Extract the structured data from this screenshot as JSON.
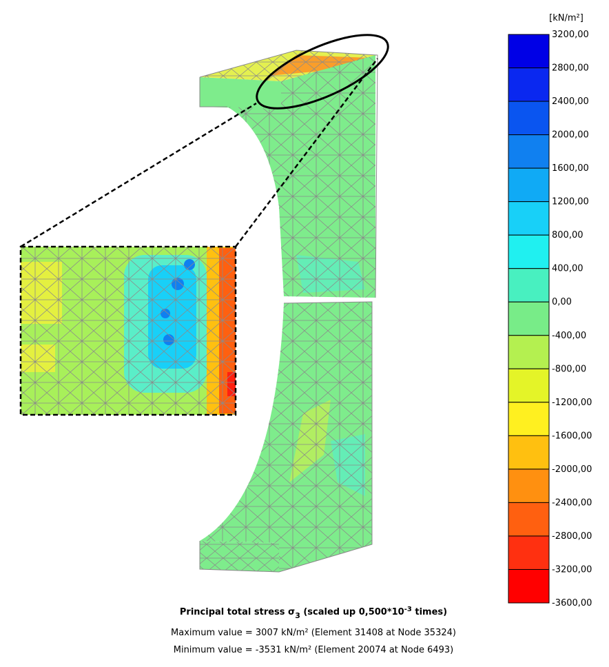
{
  "legend": {
    "unit": "[kN/m²]",
    "labels": [
      "3200,00",
      "2800,00",
      "2400,00",
      "2000,00",
      "1600,00",
      "1200,00",
      "800,00",
      "400,00",
      "0,00",
      "-400,00",
      "-800,00",
      "-1200,00",
      "-1600,00",
      "-2000,00",
      "-2400,00",
      "-2800,00",
      "-3200,00",
      "-3600,00"
    ],
    "colors": [
      "#0000e6",
      "#0a28f0",
      "#0a55f0",
      "#1080f0",
      "#10aaf5",
      "#18d0f8",
      "#20f0f0",
      "#48f0c0",
      "#78ec88",
      "#b4f050",
      "#e4f428",
      "#fff020",
      "#ffc010",
      "#ff9010",
      "#ff6010",
      "#ff3010",
      "#ff0000"
    ]
  },
  "footer": {
    "title_prefix": "Principal total stress σ",
    "title_subscript": "3",
    "title_middle": " (scaled up 0,500*10",
    "title_superscript": "-3",
    "title_suffix": " times)",
    "max_line": "Maximum value = 3007 kN/m² (Element 31408 at Node 35324)",
    "min_line": "Minimum value = -3531 kN/m² (Element 20074 at Node 6493)"
  }
}
